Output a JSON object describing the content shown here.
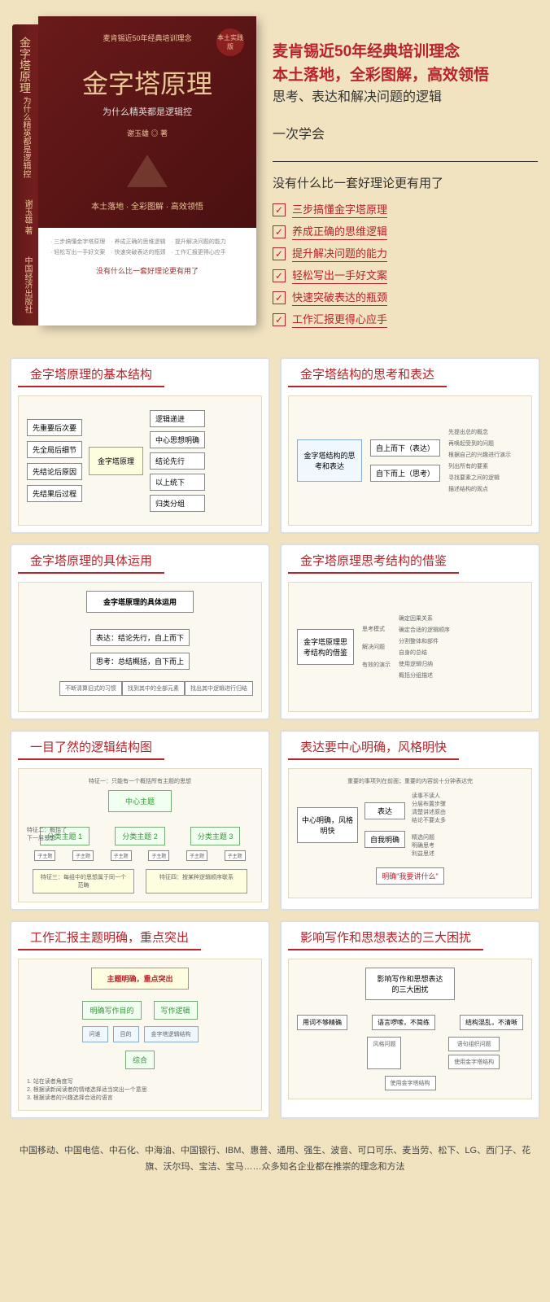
{
  "book": {
    "title": "金字塔原理",
    "subtitle": "为什么精英都是逻辑控",
    "topline": "麦肯锡近50年经典培训理念",
    "author": "谢玉雄 ◎ 著",
    "tags": "本土落地 · 全彩图解 · 高效领悟",
    "badge": "本土实践版",
    "whiteItems": "· 三步搞懂金字塔原理　· 养成正确的思维逻辑　· 提升解决问题的能力\n· 轻松写出一手好文案　· 快速突破表达的瓶颈　· 工作汇报更得心应手",
    "whiteLine": "没有什么比一套好理论更有用了",
    "spineTitle": "金字塔原理",
    "spineSub": "为什么精英都是逻辑控",
    "spineAuthor": "谢玉雄·著",
    "spinePub": "中国经济出版社"
  },
  "promo": {
    "l1": "麦肯锡近50年经典培训理念",
    "l2": "本土落地，全彩图解，高效领悟",
    "l3": "思考、表达和解决问题的逻辑",
    "l4": "一次学会",
    "sub": "没有什么比一套好理论更有用了",
    "items": [
      "三步搞懂金字塔原理",
      "养成正确的思维逻辑",
      "提升解决问题的能力",
      "轻松写出一手好文案",
      "快速突破表达的瓶颈",
      "工作汇报更得心应手"
    ]
  },
  "cards": [
    {
      "h": "金字塔原理的基本结构",
      "center": "金字塔原理",
      "left": [
        "先重要后次要",
        "先全局后细节",
        "先结论后原因",
        "先结果后过程"
      ],
      "right": [
        "逻辑递进",
        "中心思想明确",
        "结论先行",
        "以上统下",
        "归类分组"
      ]
    },
    {
      "h": "金字塔结构的思考和表达",
      "center": "金字塔结构的思考和表达",
      "b1": "自上而下（表达）",
      "b2": "自下而上（思考）",
      "r": [
        "先提出总的概念",
        "再唤起受到的问题",
        "根据自己的兴趣进行演示",
        "列出所有的要素",
        "寻找要素之间的逻辑",
        "描述结构的观点"
      ]
    },
    {
      "h": "金字塔原理的具体运用",
      "title": "金字塔原理的具体运用",
      "b1": "表达：结论先行，自上而下",
      "b2": "思考：总结概括，自下而上",
      "notes": [
        "不断清算旧式的习惯",
        "找到其中的全部元素",
        "找出其中逻辑进行归结"
      ]
    },
    {
      "h": "金字塔原理思考结构的借鉴",
      "center": "金字塔原理思考结构的借鉴",
      "mid": [
        "思考模式",
        "解决问题",
        "有效的演示"
      ],
      "right": [
        "确定因果关系",
        "确定合适的逻辑顺序",
        "分割整体和部件",
        "自身的总结",
        "使用逻辑归纳",
        "概括分组描述"
      ]
    },
    {
      "h": "一目了然的逻辑结构图",
      "center": "中心主题",
      "note1": "特征一：只能有一个概括所有主题的思想",
      "note2": "特征二：概括了下一层思想",
      "subs": [
        "分类主题 1",
        "分类主题 2",
        "分类主题 3"
      ],
      "leaf": "子主题",
      "bottom1": "特征三：每组中的思想属于同一个范畴",
      "bottom2": "特征四：按某种逻辑顺序联系"
    },
    {
      "h": "表达要中心明确，风格明快",
      "center": "中心明确，风格明快",
      "note": "重要的事项列在前面；重要的内容前十分钟表达完",
      "b1": "表达",
      "b2": "自我明确",
      "r1": [
        "读事不读人",
        "分层布置步骤",
        "清楚讲述原由",
        "结论不要太多"
      ],
      "r2": [
        "精选问题",
        "明确思考",
        "利益思述"
      ],
      "bottom": "明确\"我要讲什么\""
    },
    {
      "h": "工作汇报主题明确，重点突出",
      "title": "主题明确，重点突出",
      "b1": "明确写作目的",
      "b2": "写作逻辑",
      "s1": "问谁",
      "s2": "目的",
      "s3": "金字塔逻辑结构",
      "mid": "综合",
      "notes": [
        "1. 站在读者角度写",
        "2. 根据读新闻读者的情绪选择适当突出一个意思",
        "3. 根据读者的兴趣选择合适的语言"
      ]
    },
    {
      "h": "影响写作和思想表达的三大困扰",
      "title": "影响写作和思想表达的三大困扰",
      "b1": "用词不够精确",
      "b2": "语言啰嗦，不简练",
      "b3": "结构混乱，不清晰",
      "r1": "语句组织问题",
      "r2": "使用金字塔结构",
      "mid": "风格问题",
      "bottom": "使用金字塔结构"
    }
  ],
  "footer": "中国移动、中国电信、中石化、中海油、中国银行、IBM、惠普、通用、强生、波音、可口可乐、麦当劳、松下、LG、西门子、花旗、沃尔玛、宝洁、宝马……众多知名企业都在推崇的理念和方法"
}
